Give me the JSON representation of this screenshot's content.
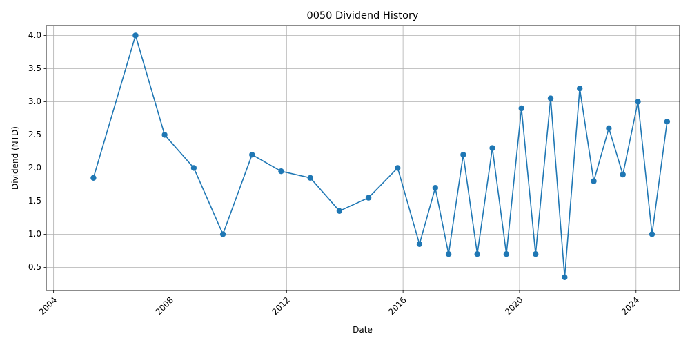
{
  "chart_data": {
    "type": "line",
    "title": "0050 Dividend History",
    "xlabel": "Date",
    "ylabel": "Dividend (NTD)",
    "x_axis_type": "date",
    "xlim": [
      "2003-10-01",
      "2025-07-01"
    ],
    "ylim": [
      0.15,
      4.15
    ],
    "x_ticks": [
      "2004",
      "2008",
      "2012",
      "2016",
      "2020",
      "2024"
    ],
    "x_tick_dates": [
      "2004-01-01",
      "2008-01-01",
      "2012-01-01",
      "2016-01-01",
      "2020-01-01",
      "2024-01-01"
    ],
    "x_tick_rotation_deg": 45,
    "y_ticks": [
      "0.5",
      "1.0",
      "1.5",
      "2.0",
      "2.5",
      "3.0",
      "3.5",
      "4.0"
    ],
    "grid": true,
    "series": [
      {
        "color": "#1f77b4",
        "marker": "circle",
        "points": [
          {
            "x": "2005-05-15",
            "y": 1.85
          },
          {
            "x": "2006-10-25",
            "y": 4.0
          },
          {
            "x": "2007-10-25",
            "y": 2.5
          },
          {
            "x": "2008-10-25",
            "y": 2.0
          },
          {
            "x": "2009-10-25",
            "y": 1.0
          },
          {
            "x": "2010-10-25",
            "y": 2.2
          },
          {
            "x": "2011-10-25",
            "y": 1.95
          },
          {
            "x": "2012-10-25",
            "y": 1.85
          },
          {
            "x": "2013-10-25",
            "y": 1.35
          },
          {
            "x": "2014-10-25",
            "y": 1.55
          },
          {
            "x": "2015-10-25",
            "y": 2.0
          },
          {
            "x": "2016-07-25",
            "y": 0.85
          },
          {
            "x": "2017-02-08",
            "y": 1.7
          },
          {
            "x": "2017-07-25",
            "y": 0.7
          },
          {
            "x": "2018-01-25",
            "y": 2.2
          },
          {
            "x": "2018-07-20",
            "y": 0.7
          },
          {
            "x": "2019-01-25",
            "y": 2.3
          },
          {
            "x": "2019-07-20",
            "y": 0.7
          },
          {
            "x": "2020-01-25",
            "y": 2.9
          },
          {
            "x": "2020-07-20",
            "y": 0.7
          },
          {
            "x": "2021-01-25",
            "y": 3.05
          },
          {
            "x": "2021-07-20",
            "y": 0.35
          },
          {
            "x": "2022-01-25",
            "y": 3.2
          },
          {
            "x": "2022-07-20",
            "y": 1.8
          },
          {
            "x": "2023-01-25",
            "y": 2.6
          },
          {
            "x": "2023-07-20",
            "y": 1.9
          },
          {
            "x": "2024-01-25",
            "y": 3.0
          },
          {
            "x": "2024-07-20",
            "y": 1.0
          },
          {
            "x": "2025-01-25",
            "y": 2.7
          }
        ]
      }
    ]
  }
}
